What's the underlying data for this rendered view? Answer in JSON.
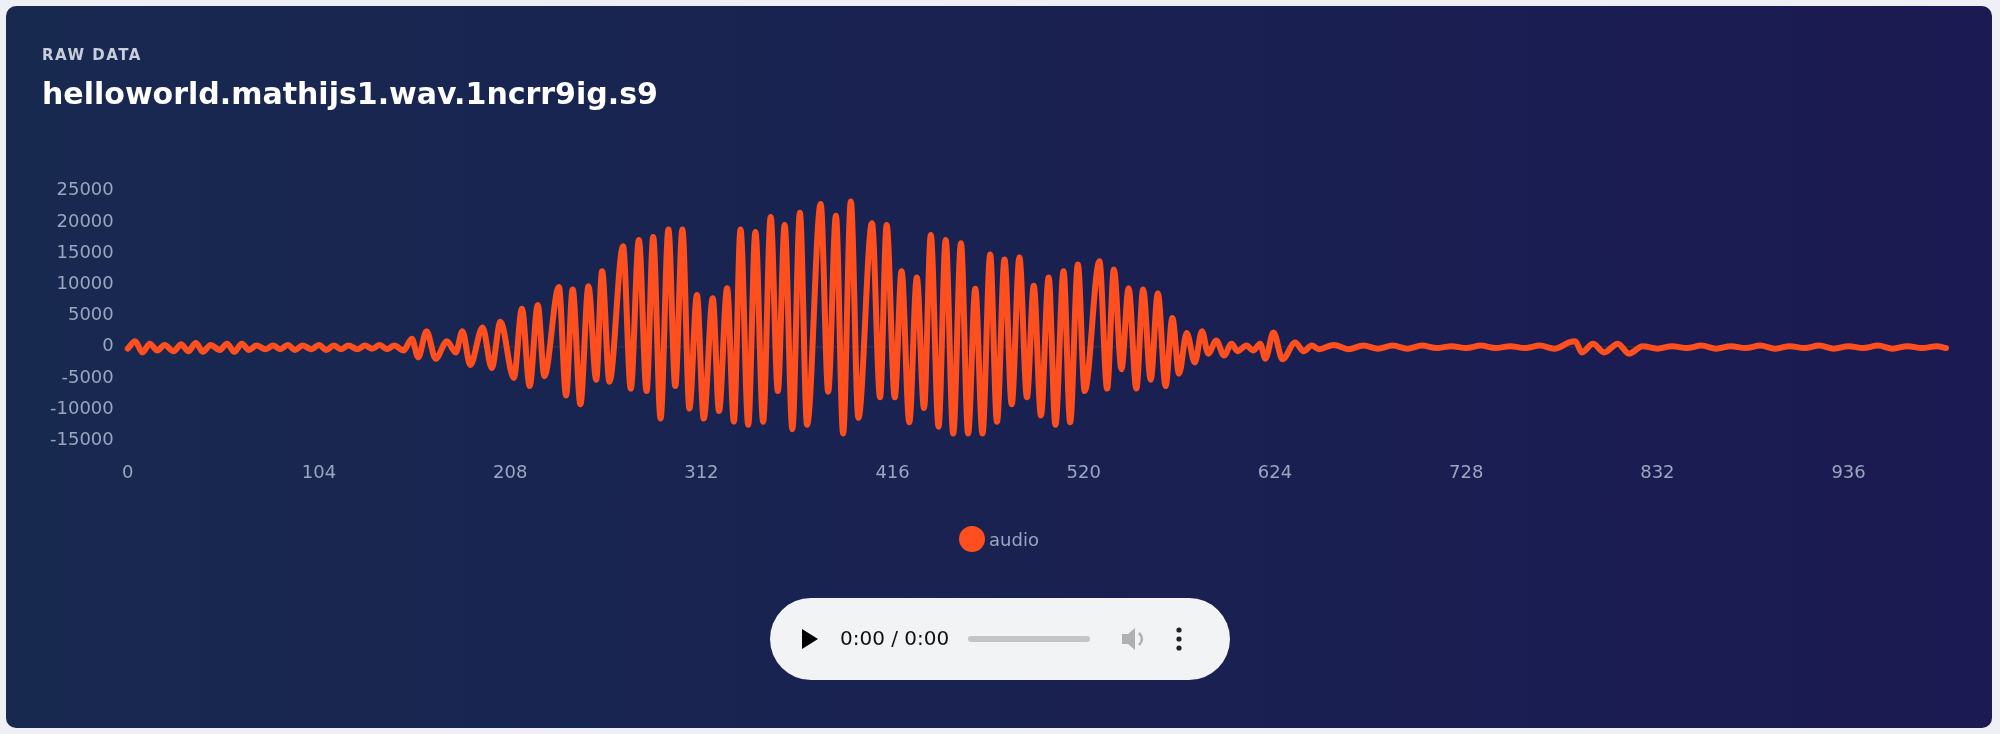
{
  "chart_data": {
    "type": "line",
    "subtitle": "RAW DATA",
    "title": "helloworld.mathijs1.wav.1ncrr9ig.s9",
    "xlim": [
      0,
      989
    ],
    "xticks": [
      0,
      104,
      208,
      312,
      416,
      520,
      624,
      728,
      832,
      936
    ],
    "ylim": [
      -15000,
      25000
    ],
    "yticks": [
      -15000,
      -10000,
      -5000,
      0,
      5000,
      10000,
      15000,
      20000,
      25000
    ],
    "grid": false,
    "legend": "bottom",
    "marker": "none",
    "line_style": "solid",
    "ref_lines": [
      {
        "axis": "y",
        "value": 0,
        "color": "#2a3040"
      }
    ],
    "annotations": [
      "0:00 / 0:00"
    ],
    "series": [
      {
        "name": "audio",
        "color": "#ff4f1f",
        "x": [
          0,
          4,
          8,
          12,
          16,
          20,
          25,
          29,
          33,
          37,
          41,
          45,
          50,
          54,
          58,
          62,
          66,
          70,
          75,
          79,
          83,
          87,
          91,
          95,
          100,
          104,
          108,
          112,
          116,
          120,
          125,
          129,
          133,
          137,
          141,
          145,
          150,
          154.5,
          158,
          162.5,
          167.5,
          173.6,
          178.4,
          182,
          186.3,
          193,
          198,
          202.7,
          210,
          214.4,
          218.6,
          223,
          226.6,
          234.5,
          238.4,
          242,
          246.2,
          250.6,
          254.8,
          258,
          262,
          269.4,
          273.6,
          278,
          282.2,
          285.8,
          289.8,
          294.1,
          297.8,
          301.7,
          305.5,
          309.6,
          313.3,
          318.2,
          321.6,
          326,
          329.7,
          333.3,
          337.5,
          341.4,
          345.6,
          349.7,
          353.6,
          357.3,
          361.5,
          365.6,
          369.5,
          376.9,
          381,
          385.2,
          389.1,
          393.3,
          397.4,
          404.8,
          409.2,
          412.8,
          417.2,
          420.9,
          425.1,
          429.2,
          433.1,
          436.8,
          441,
          444.9,
          449,
          453.2,
          457.1,
          461,
          464.9,
          469.1,
          472.8,
          476.9,
          480.8,
          485,
          489.1,
          492.8,
          496.7,
          500.9,
          504.6,
          509,
          512.6,
          516.8,
          520.5,
          528.5,
          532.7,
          536.4,
          540.5,
          544.4,
          548.6,
          552.3,
          556.4,
          560.3,
          564.5,
          568.2,
          571.8,
          576,
          580.4,
          584.3,
          587.7,
          592.1,
          596.3,
          600.4,
          603.6,
          608.5,
          612.2,
          615.9,
          618.8,
          623.2,
          628.1,
          635,
          639.6,
          644,
          648,
          656,
          664,
          672,
          680,
          688,
          696,
          704,
          712,
          720,
          728,
          736,
          744,
          752,
          760,
          768,
          776,
          784,
          787.3,
          791,
          797,
          803,
          810.5,
          816.6,
          824,
          832,
          840,
          848,
          856,
          864,
          872,
          880,
          888,
          896,
          904,
          912,
          920,
          928,
          936,
          944,
          952,
          960,
          968,
          976,
          984,
          989
        ],
        "values": [
          -300,
          900,
          -900,
          500,
          -600,
          300,
          -700,
          400,
          -700,
          600,
          -800,
          300,
          -500,
          500,
          -800,
          500,
          -500,
          200,
          -400,
          200,
          -400,
          300,
          -500,
          200,
          -400,
          300,
          -500,
          200,
          -400,
          200,
          -400,
          200,
          -300,
          300,
          -400,
          200,
          -600,
          1300,
          -1700,
          2500,
          -1900,
          900,
          -900,
          2500,
          -2900,
          3100,
          -3400,
          4000,
          -5000,
          6100,
          -6300,
          6700,
          -4700,
          9600,
          -7800,
          9200,
          -9200,
          9700,
          -5300,
          12100,
          -5600,
          16100,
          -6700,
          17100,
          -7100,
          17600,
          -11500,
          18800,
          -6300,
          18800,
          -9900,
          8300,
          -11500,
          7800,
          -10300,
          9400,
          -12000,
          18800,
          -12500,
          18400,
          -12000,
          20800,
          -7100,
          19500,
          -13200,
          21500,
          -12500,
          22900,
          -7200,
          21000,
          -13900,
          23300,
          -11400,
          19800,
          -8100,
          19500,
          -8100,
          12100,
          -12100,
          11100,
          -9800,
          17900,
          -12800,
          17100,
          -13900,
          16600,
          -13900,
          9300,
          -13900,
          14800,
          -12000,
          14000,
          -9200,
          14300,
          -8100,
          9800,
          -11000,
          11100,
          -12500,
          12100,
          -12100,
          13200,
          -7100,
          13700,
          -6700,
          12400,
          -3600,
          9400,
          -6700,
          9200,
          -5300,
          8600,
          -6300,
          4600,
          -4300,
          2200,
          -2500,
          2500,
          -1100,
          1000,
          -1400,
          500,
          -700,
          200,
          -600,
          500,
          -1900,
          2300,
          -2000,
          700,
          -700,
          200,
          -400,
          300,
          -400,
          200,
          -300,
          200,
          -300,
          200,
          -200,
          100,
          -200,
          200,
          -200,
          100,
          -200,
          200,
          -300,
          700,
          900,
          -900,
          500,
          -900,
          500,
          -1100,
          100,
          -300,
          100,
          -200,
          200,
          -300,
          100,
          -200,
          200,
          -300,
          100,
          -200,
          200,
          -300,
          100,
          -200,
          200,
          -300,
          100,
          -200,
          100,
          -200
        ]
      }
    ]
  }
}
